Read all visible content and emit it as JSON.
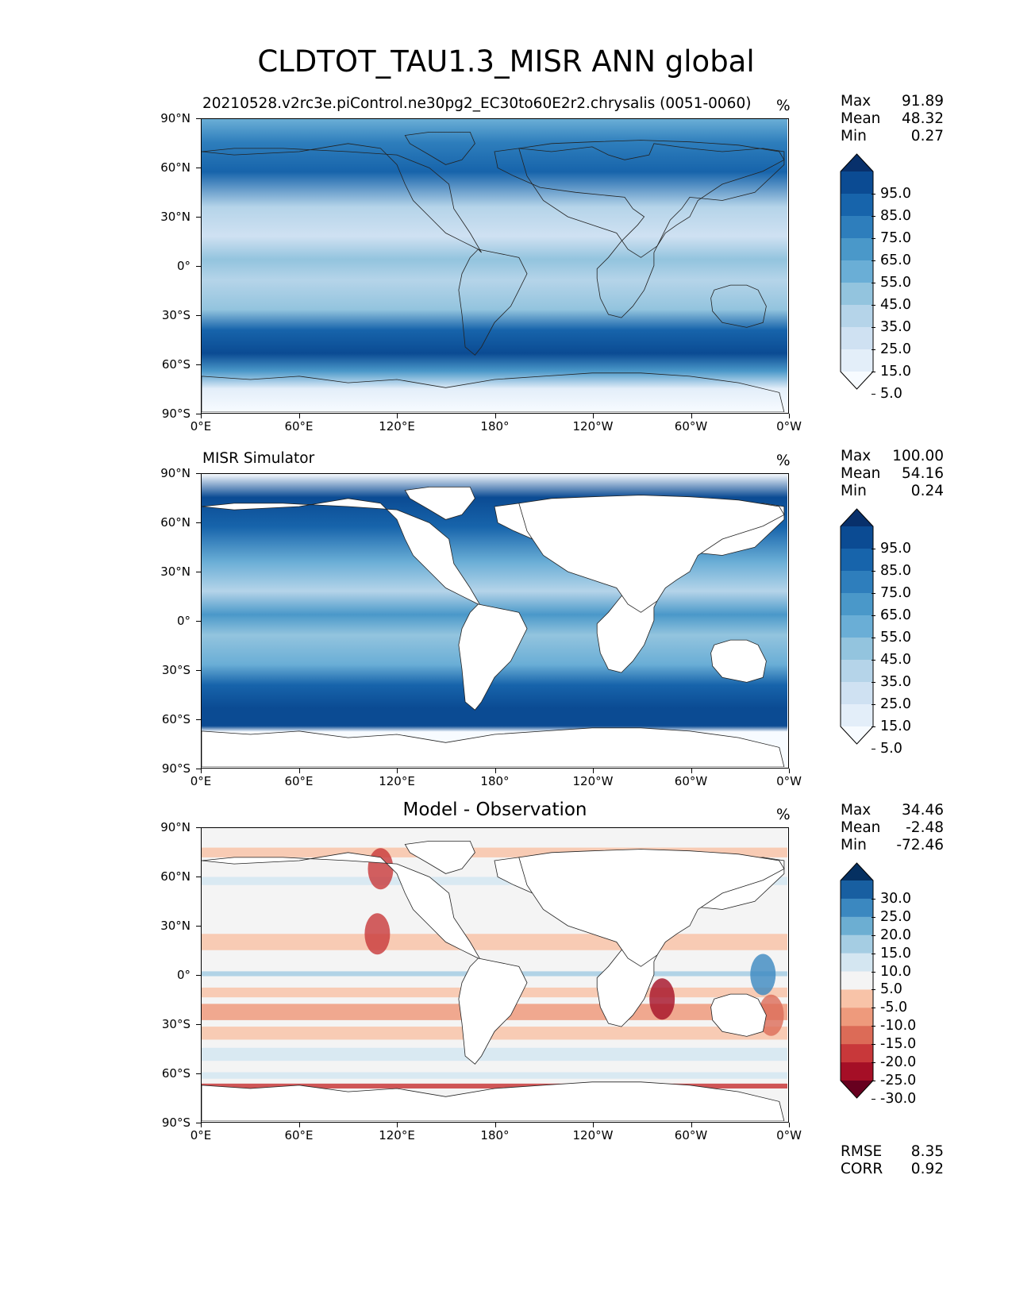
{
  "figure": {
    "title": "CLDTOT_TAU1.3_MISR ANN global"
  },
  "axes": {
    "lat_ticks": [
      "90°N",
      "60°N",
      "30°N",
      "0°",
      "30°S",
      "60°S",
      "90°S"
    ],
    "lon_ticks": [
      "0°E",
      "60°E",
      "120°E",
      "180°",
      "120°W",
      "60°W",
      "0°W"
    ]
  },
  "panels": [
    {
      "id": "test",
      "title": "20210528.v2rc3e.piControl.ne30pg2_EC30to60E2r2.chrysalis (0051-0060)",
      "units": "%",
      "stats": {
        "max_label": "Max",
        "max": "91.89",
        "mean_label": "Mean",
        "mean": "48.32",
        "min_label": "Min",
        "min": "0.27"
      },
      "colorbar": {
        "levels": [
          "95.0",
          "85.0",
          "75.0",
          "65.0",
          "55.0",
          "45.0",
          "35.0",
          "25.0",
          "15.0",
          "5.0"
        ],
        "colors": [
          "#f7fbff",
          "#e3eef9",
          "#cfe1f2",
          "#b5d4e9",
          "#93c4de",
          "#6aaed6",
          "#4a98c9",
          "#2e7ebc",
          "#1764ab",
          "#0b4b93",
          "#08306b"
        ]
      }
    },
    {
      "id": "reference",
      "title": "MISR Simulator",
      "units": "%",
      "stats": {
        "max_label": "Max",
        "max": "100.00",
        "mean_label": "Mean",
        "mean": "54.16",
        "min_label": "Min",
        "min": "0.24"
      },
      "colorbar": {
        "levels": [
          "95.0",
          "85.0",
          "75.0",
          "65.0",
          "55.0",
          "45.0",
          "35.0",
          "25.0",
          "15.0",
          "5.0"
        ],
        "colors": [
          "#f7fbff",
          "#e3eef9",
          "#cfe1f2",
          "#b5d4e9",
          "#93c4de",
          "#6aaed6",
          "#4a98c9",
          "#2e7ebc",
          "#1764ab",
          "#0b4b93",
          "#08306b"
        ]
      }
    },
    {
      "id": "diff",
      "title": "Model - Observation",
      "units": "%",
      "stats": {
        "max_label": "Max",
        "max": "34.46",
        "mean_label": "Mean",
        "mean": "-2.48",
        "min_label": "Min",
        "min": "-72.46"
      },
      "colorbar": {
        "levels": [
          "30.0",
          "25.0",
          "20.0",
          "15.0",
          "10.0",
          "5.0",
          "-5.0",
          "-10.0",
          "-15.0",
          "-20.0",
          "-25.0",
          "-30.0"
        ],
        "colors": [
          "#67001f",
          "#a50f26",
          "#c8383a",
          "#dc6b57",
          "#ee9a7c",
          "#f8c3a8",
          "#f4f4f4",
          "#d4e6f1",
          "#a5cde3",
          "#6caed2",
          "#3b88c0",
          "#185fa1",
          "#053061"
        ]
      },
      "metrics": {
        "rmse_label": "RMSE",
        "rmse": "8.35",
        "corr_label": "CORR",
        "corr": "0.92"
      }
    }
  ],
  "map_data": {
    "projection": "PlateCarree",
    "central_longitude": 180,
    "extent_lon": [
      0,
      360
    ],
    "extent_lat": [
      -90,
      90
    ],
    "variable": "CLDTOT_TAU1.3_MISR",
    "season": "ANN",
    "region": "global"
  }
}
